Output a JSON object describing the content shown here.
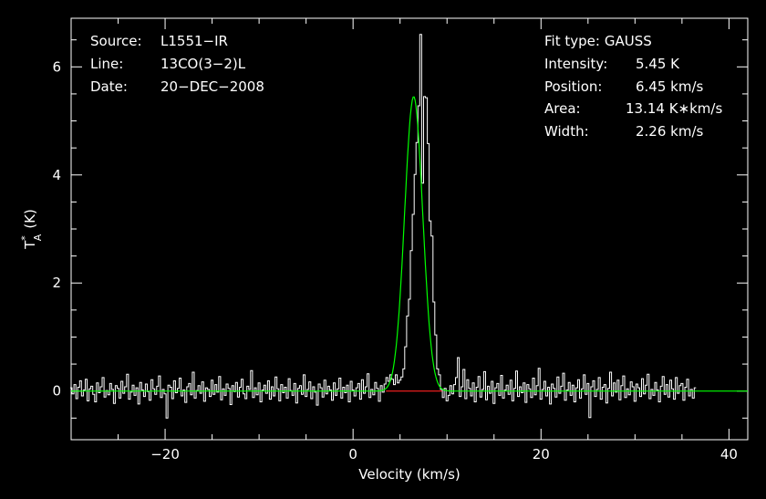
{
  "chart_data": {
    "type": "line",
    "xlabel": "Velocity (km/s)",
    "ylabel": "T*A (K)",
    "ylabel_parts": {
      "base": "T",
      "sup": "*",
      "sub": "A",
      "unit": "(K)"
    },
    "xlim": [
      -30,
      42
    ],
    "ylim": [
      -0.9,
      6.9
    ],
    "x_ticks": [
      -20,
      0,
      20,
      40
    ],
    "x_tick_labels": [
      "−20",
      "0",
      "20",
      "40"
    ],
    "y_ticks": [
      0,
      2,
      4,
      6
    ],
    "y_tick_labels": [
      "0",
      "2",
      "4",
      "6"
    ],
    "x_minor_step": 5,
    "y_minor_step": 0.5,
    "grid": false,
    "info_left": [
      {
        "key": "Source:",
        "value": "L1551−IR"
      },
      {
        "key": "Line:",
        "value": "13CO(3−2)L"
      },
      {
        "key": "Date:",
        "value": "20−DEC−2008"
      }
    ],
    "info_right": [
      {
        "key": "Fit type:",
        "value": "GAUSS"
      },
      {
        "key": "Intensity:",
        "value": "5.45 K"
      },
      {
        "key": "Position:",
        "value": "6.45 km/s"
      },
      {
        "key": "Area:",
        "value": "13.14 K∗km/s"
      },
      {
        "key": "Width:",
        "value": "2.26 km/s"
      }
    ],
    "gauss_fit": {
      "amplitude_K": 5.45,
      "center_kms": 6.45,
      "fwhm_kms": 2.26,
      "color": "#00ff00"
    },
    "baseline": {
      "value": 0,
      "x_range": [
        3.5,
        9.5
      ],
      "color": "#ff2020"
    },
    "spectrum": {
      "x_start": -30,
      "x_step": 0.2,
      "color": "#ffffff",
      "values": [
        0.06,
        -0.05,
        0.12,
        -0.14,
        0.07,
        0.19,
        -0.09,
        0.02,
        0.22,
        -0.18,
        0.04,
        0.09,
        -0.06,
        -0.2,
        0.15,
        -0.03,
        0.08,
        0.25,
        -0.11,
        0.01,
        -0.07,
        0.14,
        0.03,
        -0.23,
        0.1,
        0.05,
        -0.13,
        0.18,
        -0.04,
        0.08,
        0.31,
        -0.15,
        -0.02,
        0.11,
        -0.08,
        0.06,
        -0.24,
        0.16,
        0.02,
        -0.1,
        0.13,
        -0.01,
        -0.17,
        0.21,
        0.04,
        -0.06,
        0.09,
        0.28,
        -0.12,
        0.03,
        -0.05,
        -0.5,
        0.11,
        0.07,
        -0.14,
        0.19,
        -0.03,
        0.05,
        0.24,
        -0.09,
        0.02,
        -0.21,
        0.08,
        0.14,
        -0.07,
        0.35,
        -0.13,
        0.01,
        0.1,
        -0.04,
        0.17,
        -0.19,
        0.06,
        0.03,
        -0.1,
        0.2,
        -0.06,
        0.12,
        -0.02,
        0.27,
        -0.16,
        0.04,
        -0.08,
        0.13,
        0.05,
        -0.25,
        0.1,
        -0.01,
        0.16,
        -0.11,
        0.07,
        0.22,
        -0.05,
        -0.14,
        0.09,
        0.03,
        0.38,
        -0.12,
        0.06,
        -0.07,
        0.15,
        -0.2,
        0.02,
        0.11,
        -0.04,
        0.19,
        -0.15,
        0.08,
        -0.09,
        0.26,
        0.04,
        -0.18,
        0.12,
        -0.03,
        0.07,
        -0.13,
        0.23,
        0.01,
        -0.08,
        0.14,
        -0.22,
        0.05,
        0.1,
        -0.06,
        0.3,
        -0.1,
        0.03,
        0.17,
        -0.14,
        0.08,
        -0.02,
        -0.26,
        0.13,
        0.06,
        -0.11,
        0.2,
        -0.05,
        0.09,
        0.02,
        -0.17,
        0.15,
        -0.08,
        0.04,
        0.24,
        -0.13,
        0.07,
        -0.03,
        0.11,
        -0.2,
        0.18,
        0.02,
        -0.09,
        0.06,
        0.14,
        -0.15,
        0.21,
        -0.04,
        0.08,
        0.32,
        -0.12,
        0.03,
        -0.07,
        0.16,
        0.05,
        -0.19,
        0.1,
        -0.02,
        0.13,
        0.25,
        0.18,
        0.3,
        0.22,
        0.12,
        0.3,
        0.15,
        0.2,
        0.26,
        0.41,
        0.82,
        1.39,
        1.7,
        2.6,
        3.27,
        4.01,
        4.6,
        5.28,
        6.6,
        3.85,
        5.45,
        5.43,
        4.58,
        3.15,
        2.87,
        1.65,
        1.04,
        0.41,
        0.3,
        0.03,
        -0.12,
        0.05,
        -0.18,
        -0.08,
        0.1,
        -0.05,
        0.12,
        0.25,
        0.62,
        -0.1,
        0.08,
        0.4,
        -0.14,
        0.21,
        0.05,
        -0.09,
        0.15,
        -0.2,
        0.07,
        0.27,
        -0.11,
        0.03,
        0.36,
        -0.16,
        0.09,
        -0.04,
        0.18,
        -0.23,
        0.06,
        0.14,
        -0.08,
        0.29,
        -0.13,
        0.02,
        0.11,
        -0.06,
        0.2,
        -0.18,
        0.05,
        0.37,
        -0.1,
        0.08,
        -0.03,
        0.15,
        -0.21,
        0.12,
        0.04,
        -0.12,
        0.24,
        -0.07,
        0.1,
        0.42,
        -0.15,
        0.03,
        0.18,
        -0.09,
        0.07,
        -0.24,
        0.13,
        0.05,
        -0.11,
        0.26,
        -0.04,
        0.09,
        0.33,
        -0.17,
        0.02,
        0.16,
        -0.08,
        0.11,
        -0.2,
        0.06,
        0.21,
        -0.13,
        0.04,
        0.3,
        -0.06,
        0.14,
        -0.49,
        0.08,
        0.19,
        -0.1,
        0.03,
        0.25,
        -0.15,
        0.07,
        0.12,
        -0.22,
        0.05,
        0.35,
        -0.09,
        0.15,
        -0.02,
        0.2,
        -0.16,
        0.1,
        0.28,
        -0.12,
        0.04,
        -0.07,
        0.17,
        0.08,
        -0.19,
        0.13,
        0.06,
        -0.1,
        0.23,
        -0.05,
        0.11,
        0.31,
        -0.14,
        0.03,
        -0.08,
        0.16,
        0.02,
        -0.2,
        0.09,
        0.27,
        -0.06,
        0.12,
        -0.11,
        0.2,
        0.04,
        -0.15,
        0.25,
        -0.04,
        0.1,
        0.14,
        -0.17,
        0.07,
        0.22,
        -0.09,
        0.03,
        -0.13,
        0.06
      ]
    }
  }
}
